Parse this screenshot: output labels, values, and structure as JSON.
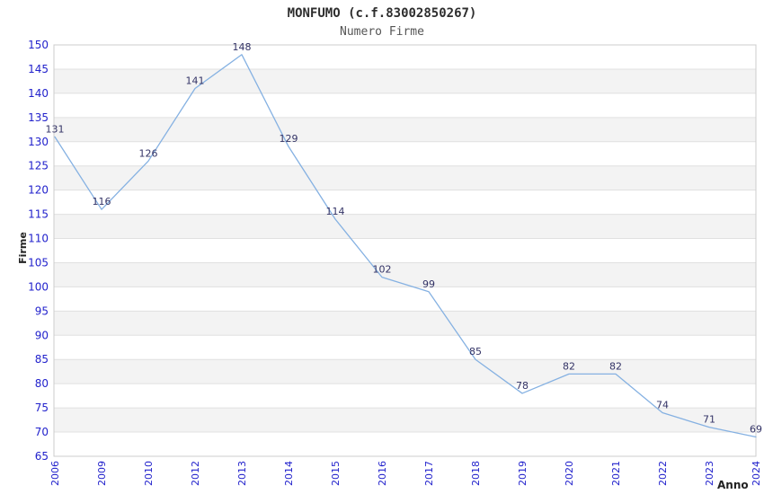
{
  "chart_data": {
    "type": "line",
    "title": "MONFUMO (c.f.83002850267)",
    "subtitle": "Numero Firme",
    "xlabel": "Anno",
    "ylabel": "Firme",
    "categories": [
      "2006",
      "2009",
      "2010",
      "2012",
      "2013",
      "2014",
      "2015",
      "2016",
      "2017",
      "2018",
      "2019",
      "2020",
      "2021",
      "2022",
      "2023",
      "2024"
    ],
    "values": [
      131,
      116,
      126,
      141,
      148,
      129,
      114,
      102,
      99,
      85,
      78,
      82,
      82,
      74,
      71,
      69
    ],
    "ylim": [
      65,
      150
    ],
    "ytick_step": 5,
    "yticks": [
      65,
      70,
      75,
      80,
      85,
      90,
      95,
      100,
      105,
      110,
      115,
      120,
      125,
      130,
      135,
      140,
      145,
      150
    ],
    "grid": "horizontal gridlines with alternating shaded bands",
    "legend": "none",
    "data_labels_shown": true,
    "colors": {
      "line": "#85b1e2",
      "tick_label": "#2222cc",
      "data_label": "#333366",
      "band_shaded": "#f3f3f3",
      "band_plain": "#ffffff",
      "grid_line": "#e0e0e0",
      "plot_border": "#cccccc",
      "title": "#2e2e2e",
      "subtitle": "#555555",
      "axis_title": "#222222"
    }
  }
}
